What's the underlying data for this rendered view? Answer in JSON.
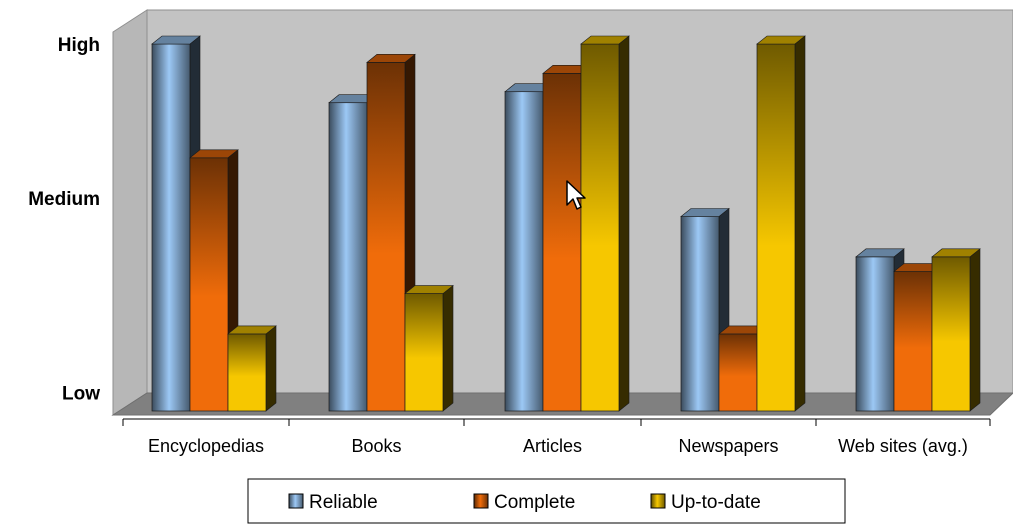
{
  "chart_data": {
    "type": "bar",
    "categories": [
      "Encyclopedias",
      "Books",
      "Articles",
      "Newspapers",
      "Web sites (avg.)"
    ],
    "series": [
      {
        "name": "Reliable",
        "values": [
          100,
          84,
          87,
          53,
          42
        ],
        "color": "#9cc8f5"
      },
      {
        "name": "Complete",
        "values": [
          69,
          95,
          92,
          21,
          38
        ],
        "color": "#f06c0a"
      },
      {
        "name": "Up-to-date",
        "values": [
          21,
          32,
          100,
          100,
          42
        ],
        "color": "#f6c700"
      }
    ],
    "yticks": [
      {
        "label": "High",
        "value": 100
      },
      {
        "label": "Medium",
        "value": 58
      },
      {
        "label": "Low",
        "value": 5
      }
    ],
    "ylim": [
      0,
      100
    ],
    "legend": "bottom",
    "grid": false,
    "title": "",
    "xlabel": "",
    "ylabel": ""
  }
}
